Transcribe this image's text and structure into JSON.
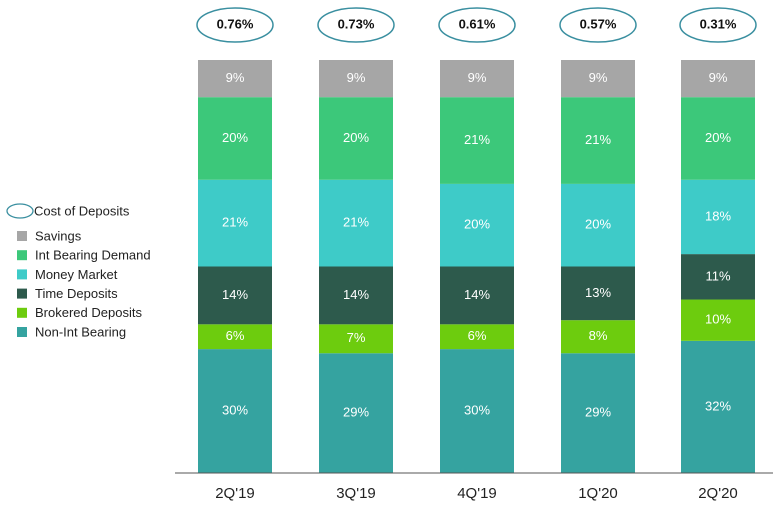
{
  "chart_data": {
    "type": "stacked_bar",
    "categories": [
      "2Q'19",
      "3Q'19",
      "4Q'19",
      "1Q'20",
      "2Q'20"
    ],
    "series": [
      {
        "name": "Savings",
        "color": "#a6a6a6",
        "values": [
          9,
          9,
          9,
          9,
          9
        ],
        "value_labels": [
          "9%",
          "9%",
          "9%",
          "9%",
          "9%"
        ]
      },
      {
        "name": "Int Bearing Demand",
        "color": "#3cc87a",
        "values": [
          20,
          20,
          21,
          21,
          20
        ],
        "value_labels": [
          "20%",
          "20%",
          "21%",
          "21%",
          "20%"
        ]
      },
      {
        "name": "Money Market",
        "color": "#3ecbc8",
        "values": [
          21,
          21,
          20,
          20,
          18
        ],
        "value_labels": [
          "21%",
          "21%",
          "20%",
          "20%",
          "18%"
        ]
      },
      {
        "name": "Time Deposits",
        "color": "#2d5a4c",
        "values": [
          14,
          14,
          14,
          13,
          11
        ],
        "value_labels": [
          "14%",
          "14%",
          "14%",
          "13%",
          "11%"
        ]
      },
      {
        "name": "Brokered Deposits",
        "color": "#6dcc0e",
        "values": [
          6,
          7,
          6,
          8,
          10
        ],
        "value_labels": [
          "6%",
          "7%",
          "6%",
          "8%",
          "10%"
        ]
      },
      {
        "name": "Non-Int Bearing",
        "color": "#35a3a0",
        "values": [
          30,
          29,
          30,
          29,
          32
        ],
        "value_labels": [
          "30%",
          "29%",
          "30%",
          "29%",
          "32%"
        ]
      }
    ],
    "cost_of_deposits": {
      "name": "Cost of Deposits",
      "color": "#3a8fa0",
      "values": [
        0.76,
        0.73,
        0.61,
        0.57,
        0.31
      ],
      "value_labels": [
        "0.76%",
        "0.73%",
        "0.61%",
        "0.57%",
        "0.31%"
      ]
    }
  }
}
